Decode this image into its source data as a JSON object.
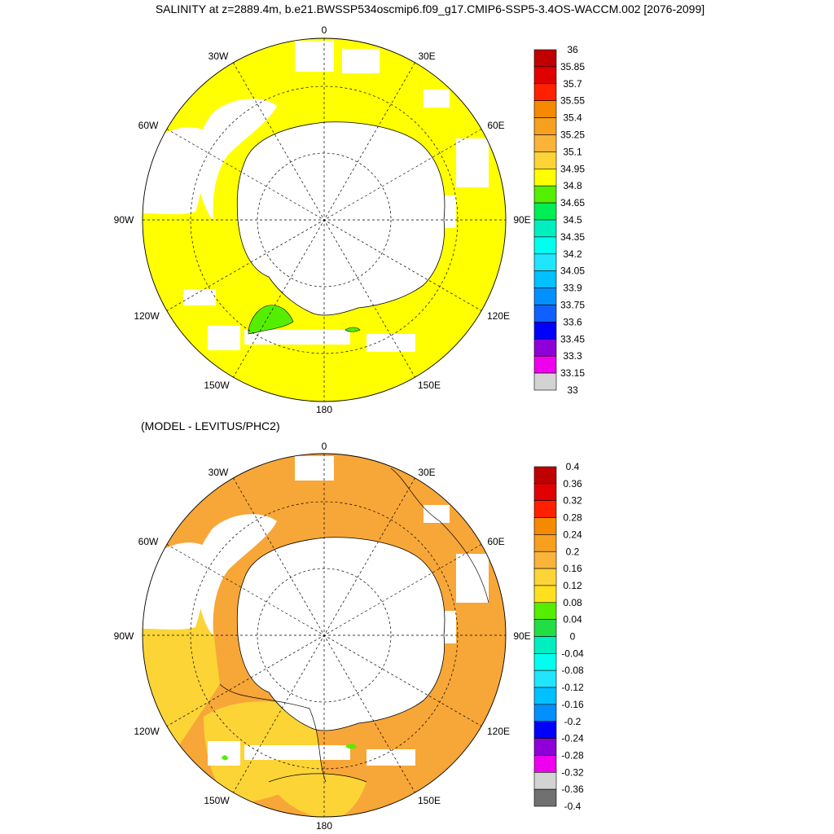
{
  "figure": {
    "title": "SALINITY at z=2889.4m, b.e21.BWSSP534oscmip6.f09_g17.CMIP6-SSP5-3.4OS-WACCM.002 [2076-2099]",
    "subtitle": "(MODEL - LEVITUS/PHC2)"
  },
  "map_labels": {
    "lon_0": "0",
    "lon_30w": "30W",
    "lon_30e": "30E",
    "lon_60w": "60W",
    "lon_60e": "60E",
    "lon_90w": "90W",
    "lon_90e": "90E",
    "lon_120w": "120W",
    "lon_120e": "120E",
    "lon_150w": "150W",
    "lon_150e": "150E",
    "lon_180": "180"
  },
  "colorbars": {
    "salinity": {
      "labels": [
        "36",
        "35.85",
        "35.7",
        "35.55",
        "35.4",
        "35.25",
        "35.1",
        "34.95",
        "34.8",
        "34.65",
        "34.5",
        "34.35",
        "34.2",
        "34.05",
        "33.9",
        "33.75",
        "33.6",
        "33.45",
        "33.3",
        "33.15",
        "33"
      ],
      "colors": [
        "#c00000",
        "#e00000",
        "#ff2000",
        "#f58a00",
        "#f7a020",
        "#fab43a",
        "#fcd436",
        "#ffff00",
        "#55ee00",
        "#00ee55",
        "#00eec0",
        "#00ffee",
        "#20e5ff",
        "#00c0ff",
        "#0090ff",
        "#1060ff",
        "#0000ff",
        "#8f00d8",
        "#ee00ee",
        "#d3d3d3",
        "#707070"
      ]
    },
    "difference": {
      "labels": [
        "0.4",
        "0.36",
        "0.32",
        "0.28",
        "0.24",
        "0.2",
        "0.16",
        "0.12",
        "0.08",
        "0.04",
        "0",
        "-0.04",
        "-0.08",
        "-0.12",
        "-0.16",
        "-0.2",
        "-0.24",
        "-0.28",
        "-0.32",
        "-0.36",
        "-0.4"
      ],
      "colors": [
        "#c00000",
        "#e00000",
        "#ff2000",
        "#f58a00",
        "#f7a020",
        "#fab43a",
        "#fcd436",
        "#ffe020",
        "#55ee00",
        "#22dd44",
        "#00eec0",
        "#00ffee",
        "#20e5ff",
        "#00c0ff",
        "#0090ff",
        "#0000ff",
        "#8f00d8",
        "#ee00ee",
        "#d3d3d3",
        "#707070"
      ]
    }
  },
  "fills": {
    "land": "#ffffff",
    "salinity_ocean": "#ffff00",
    "salinity_anomaly": "#55ee00",
    "difference_orange": "#f7a638",
    "difference_yellow": "#fcd436",
    "difference_green": "#55ee00"
  }
}
